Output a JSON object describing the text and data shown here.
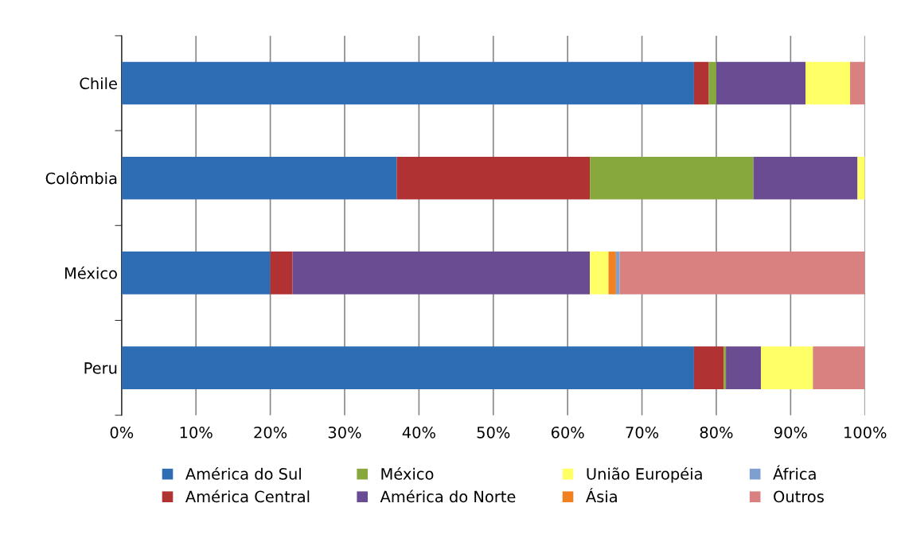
{
  "chart_data": {
    "type": "bar",
    "orientation": "horizontal",
    "stacked": true,
    "categories": [
      "Chile",
      "Colômbia",
      "México",
      "Peru"
    ],
    "series": [
      {
        "name": "América do Sul",
        "color": "#2e6db4",
        "values": [
          77,
          37,
          20,
          77
        ]
      },
      {
        "name": "América Central",
        "color": "#b03232",
        "values": [
          2,
          26,
          3,
          4
        ]
      },
      {
        "name": "México",
        "color": "#86a83c",
        "values": [
          1,
          22,
          0,
          0.3
        ]
      },
      {
        "name": "América do Norte",
        "color": "#6a4c93",
        "values": [
          12,
          14,
          40,
          4.7
        ]
      },
      {
        "name": "União Européia",
        "color": "#ffff66",
        "values": [
          6,
          1,
          2.5,
          7
        ]
      },
      {
        "name": "Ásia",
        "color": "#f08020",
        "values": [
          0,
          0,
          1,
          0
        ]
      },
      {
        "name": "África",
        "color": "#7f9fd0",
        "values": [
          0,
          0,
          0.5,
          0
        ]
      },
      {
        "name": "Outros",
        "color": "#d98080",
        "values": [
          2,
          0,
          33,
          7
        ]
      }
    ],
    "xlim": [
      0,
      100
    ],
    "xticks": [
      {
        "value": 0,
        "label": "0%"
      },
      {
        "value": 10,
        "label": "10%"
      },
      {
        "value": 20,
        "label": "20%"
      },
      {
        "value": 30,
        "label": "30%"
      },
      {
        "value": 40,
        "label": "40%"
      },
      {
        "value": 50,
        "label": "50%"
      },
      {
        "value": 60,
        "label": "60%"
      },
      {
        "value": 70,
        "label": "70%"
      },
      {
        "value": 80,
        "label": "80%"
      },
      {
        "value": 90,
        "label": "90%"
      },
      {
        "value": 100,
        "label": "100%"
      }
    ],
    "grid": "x",
    "legend": "bottom"
  }
}
